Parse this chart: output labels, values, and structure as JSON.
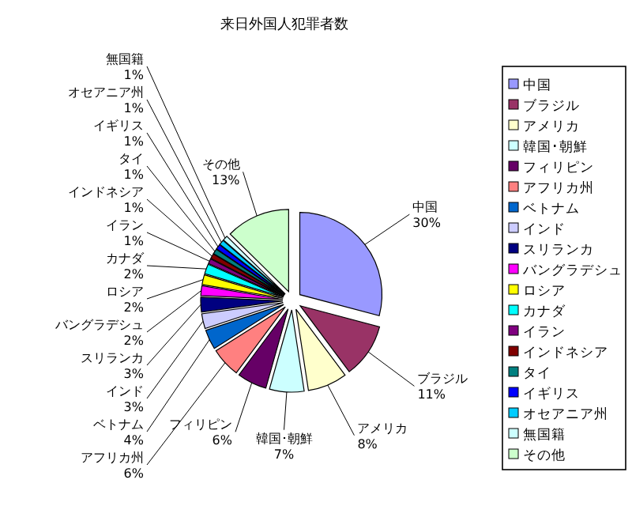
{
  "chart_data": {
    "type": "pie",
    "title": "来日外国人犯罪者数",
    "categories": [
      "中国",
      "ブラジル",
      "アメリカ",
      "韓国･朝鮮",
      "フィリピン",
      "アフリカ州",
      "ベトナム",
      "インド",
      "スリランカ",
      "バングラデシュ",
      "ロシア",
      "カナダ",
      "イラン",
      "インドネシア",
      "タイ",
      "イギリス",
      "オセアニア州",
      "無国籍",
      "その他"
    ],
    "values": [
      30,
      11,
      8,
      7,
      6,
      6,
      4,
      3,
      3,
      2,
      2,
      2,
      1,
      1,
      1,
      1,
      1,
      1,
      13
    ],
    "value_labels": [
      "30%",
      "11%",
      "8%",
      "7%",
      "6%",
      "6%",
      "4%",
      "3%",
      "3%",
      "2%",
      "2%",
      "2%",
      "1%",
      "1%",
      "1%",
      "1%",
      "1%",
      "1%",
      "13%"
    ],
    "colors": [
      "#9999ff",
      "#993366",
      "#ffffcc",
      "#ccffff",
      "#660066",
      "#ff8080",
      "#0066cc",
      "#ccccff",
      "#000080",
      "#ff00ff",
      "#ffff00",
      "#00ffff",
      "#800080",
      "#800000",
      "#008080",
      "#0000ff",
      "#00ccff",
      "#ccffff",
      "#ccffcc"
    ],
    "legend": "right"
  }
}
